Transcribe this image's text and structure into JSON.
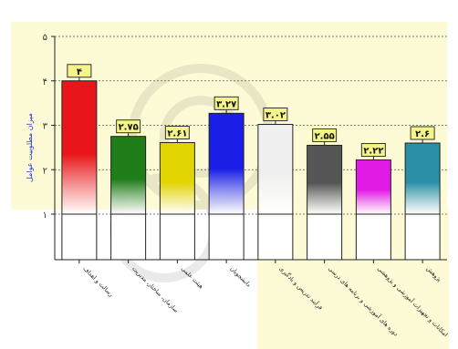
{
  "chart_data": {
    "type": "bar",
    "ylabel": "میزان مطلوبیت عوامل",
    "ylim": [
      1,
      5
    ],
    "yticks": [
      1,
      2,
      3,
      4,
      5
    ],
    "ytick_labels": [
      "۱",
      "۲",
      "۳",
      "۴",
      "۵"
    ],
    "grid": true,
    "categories": [
      "رسالت و اهداف",
      "سازمان، ساختار، مدیریت",
      "هیئت علمی",
      "دانشجویان",
      "فرآیند تدریس و یادگیری",
      "دوره های آموزشی و برنامه های درسی",
      "امکانات و تجهیزات آموزشی و پژوهشی",
      "پژوهش"
    ],
    "values": [
      4,
      2.75,
      2.61,
      3.27,
      3.02,
      2.55,
      2.22,
      2.6
    ],
    "value_labels": [
      "۴",
      "۲.۷۵",
      "۲.۶۱",
      "۳.۲۷",
      "۳.۰۲",
      "۲.۵۵",
      "۲.۲۲",
      "۲.۶"
    ],
    "colors": [
      "#e8161b",
      "#1f7d1a",
      "#e2d400",
      "#1a1ee6",
      "#f0f0f0",
      "#565656",
      "#e21ae6",
      "#2a8fa6"
    ]
  }
}
